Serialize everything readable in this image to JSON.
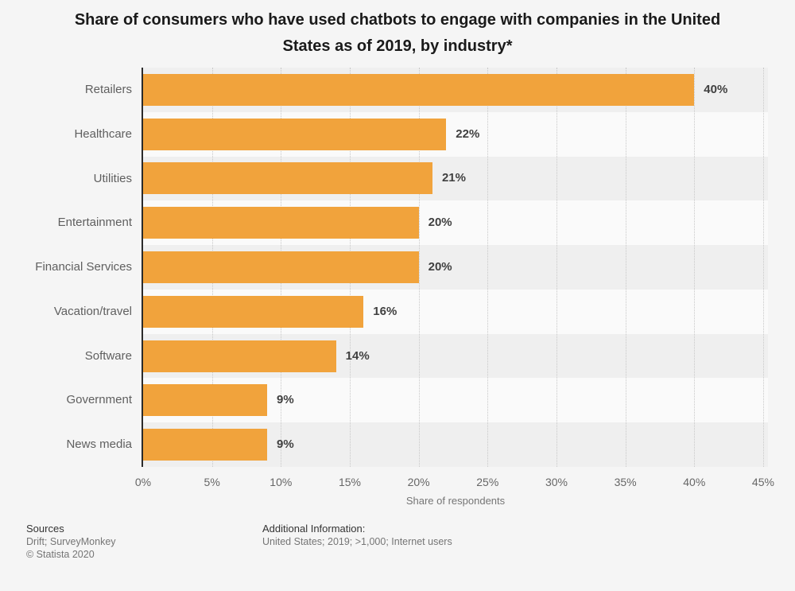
{
  "title": "Share of consumers who have used chatbots to engage with companies in the United States as of 2019, by industry*",
  "chart_data": {
    "type": "bar",
    "orientation": "horizontal",
    "title": "Share of consumers who have used chatbots to engage with companies in the United States as of 2019, by industry*",
    "categories": [
      "Retailers",
      "Healthcare",
      "Utilities",
      "Entertainment",
      "Financial Services",
      "Vacation/travel",
      "Software",
      "Government",
      "News media"
    ],
    "values": [
      40,
      22,
      21,
      20,
      20,
      16,
      14,
      9,
      9
    ],
    "value_labels": [
      "40%",
      "22%",
      "21%",
      "20%",
      "20%",
      "16%",
      "14%",
      "9%",
      "9%"
    ],
    "xlabel": "Share of respondents",
    "ylabel": "",
    "x_ticks": [
      "0%",
      "5%",
      "10%",
      "15%",
      "20%",
      "25%",
      "30%",
      "35%",
      "40%",
      "45%"
    ],
    "xlim": [
      0,
      45
    ],
    "grid": "vertical-dotted",
    "legend": "none"
  },
  "footer": {
    "sources_heading": "Sources",
    "sources_line": "Drift; SurveyMonkey",
    "copyright": "© Statista 2020",
    "additional_heading": "Additional Information:",
    "additional_line": "United States; 2019; >1,000; Internet users"
  },
  "colors": {
    "bar": "#f1a33c",
    "band_odd": "#efefef",
    "band_even": "#fafafa",
    "page_background": "#f5f5f5",
    "axis_line": "#2b2b2b",
    "gridline": "#c8c8c8",
    "value_label": "#404040",
    "category_label": "#5f5f5f",
    "tick_label": "#666666",
    "axis_title": "#757575"
  }
}
